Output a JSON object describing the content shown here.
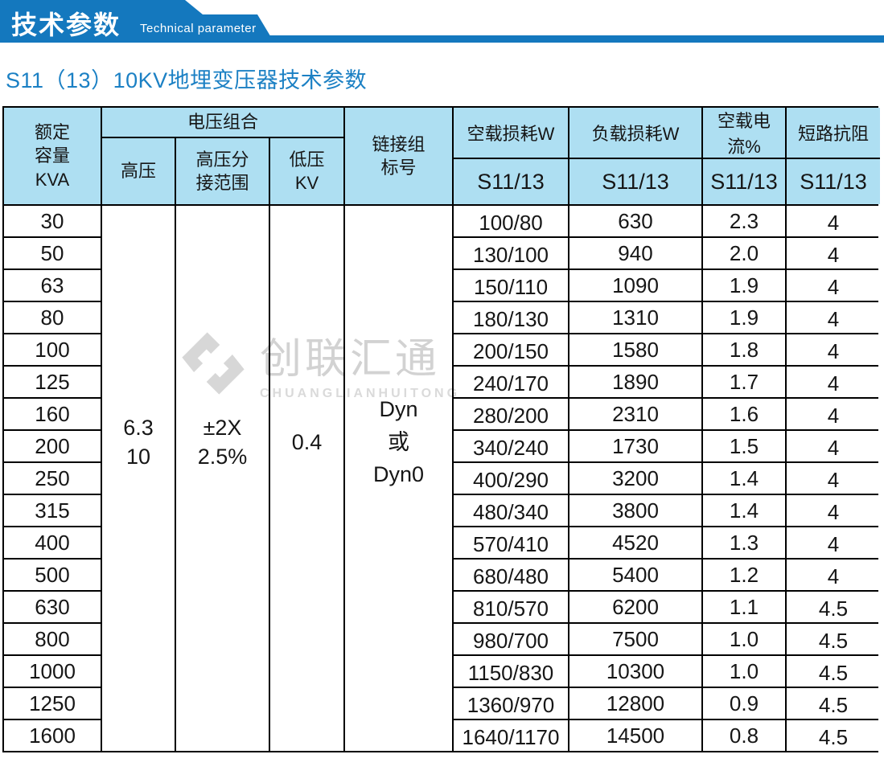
{
  "banner": {
    "title_cn": "技术参数",
    "title_en": "Technical parameter"
  },
  "page": {
    "heading": "S11（13）10KV地埋变压器技术参数"
  },
  "watermark": {
    "cn": "创联汇通",
    "en": "CHUANGLIANHUITONG",
    "logo_icon": "diamond-ribbon-logo"
  },
  "colors": {
    "banner_blue": "#1478be",
    "heading_blue": "#1b80c4",
    "table_header_bg": "#aedff2",
    "border": "#000000",
    "watermark_gray": "#d2d2d2"
  },
  "table": {
    "headers": {
      "capacity": "额定\n容量\nKVA",
      "voltage_group": "电压组合",
      "hv": "高压",
      "hv_tap": "高压分\n接范围",
      "lv": "低压\nKV",
      "connection": "链接组\n标号"
    },
    "columns_right": [
      {
        "label": "空载损耗W",
        "sub": "S11/13"
      },
      {
        "label": "负载损耗W",
        "sub": "S11/13"
      },
      {
        "label": "空载电流%",
        "sub": "S11/13"
      },
      {
        "label": "短路抗阻",
        "sub": "S11/13"
      }
    ],
    "merged_values": {
      "hv": "6.3\n10",
      "hv_tap": "±2X\n2.5%",
      "lv": "0.4",
      "connection": "Dyn\n或\nDyn0"
    },
    "rows": [
      {
        "kva": "30",
        "no_load": "100/80",
        "load": "630",
        "current": "2.3",
        "imp": "4"
      },
      {
        "kva": "50",
        "no_load": "130/100",
        "load": "940",
        "current": "2.0",
        "imp": "4"
      },
      {
        "kva": "63",
        "no_load": "150/110",
        "load": "1090",
        "current": "1.9",
        "imp": "4"
      },
      {
        "kva": "80",
        "no_load": "180/130",
        "load": "1310",
        "current": "1.9",
        "imp": "4"
      },
      {
        "kva": "100",
        "no_load": "200/150",
        "load": "1580",
        "current": "1.8",
        "imp": "4"
      },
      {
        "kva": "125",
        "no_load": "240/170",
        "load": "1890",
        "current": "1.7",
        "imp": "4"
      },
      {
        "kva": "160",
        "no_load": "280/200",
        "load": "2310",
        "current": "1.6",
        "imp": "4"
      },
      {
        "kva": "200",
        "no_load": "340/240",
        "load": "1730",
        "current": "1.5",
        "imp": "4"
      },
      {
        "kva": "250",
        "no_load": "400/290",
        "load": "3200",
        "current": "1.4",
        "imp": "4"
      },
      {
        "kva": "315",
        "no_load": "480/340",
        "load": "3800",
        "current": "1.4",
        "imp": "4"
      },
      {
        "kva": "400",
        "no_load": "570/410",
        "load": "4520",
        "current": "1.3",
        "imp": "4"
      },
      {
        "kva": "500",
        "no_load": "680/480",
        "load": "5400",
        "current": "1.2",
        "imp": "4"
      },
      {
        "kva": "630",
        "no_load": "810/570",
        "load": "6200",
        "current": "1.1",
        "imp": "4.5"
      },
      {
        "kva": "800",
        "no_load": "980/700",
        "load": "7500",
        "current": "1.0",
        "imp": "4.5"
      },
      {
        "kva": "1000",
        "no_load": "1150/830",
        "load": "10300",
        "current": "1.0",
        "imp": "4.5"
      },
      {
        "kva": "1250",
        "no_load": "1360/970",
        "load": "12800",
        "current": "0.9",
        "imp": "4.5"
      },
      {
        "kva": "1600",
        "no_load": "1640/1170",
        "load": "14500",
        "current": "0.8",
        "imp": "4.5"
      }
    ]
  }
}
